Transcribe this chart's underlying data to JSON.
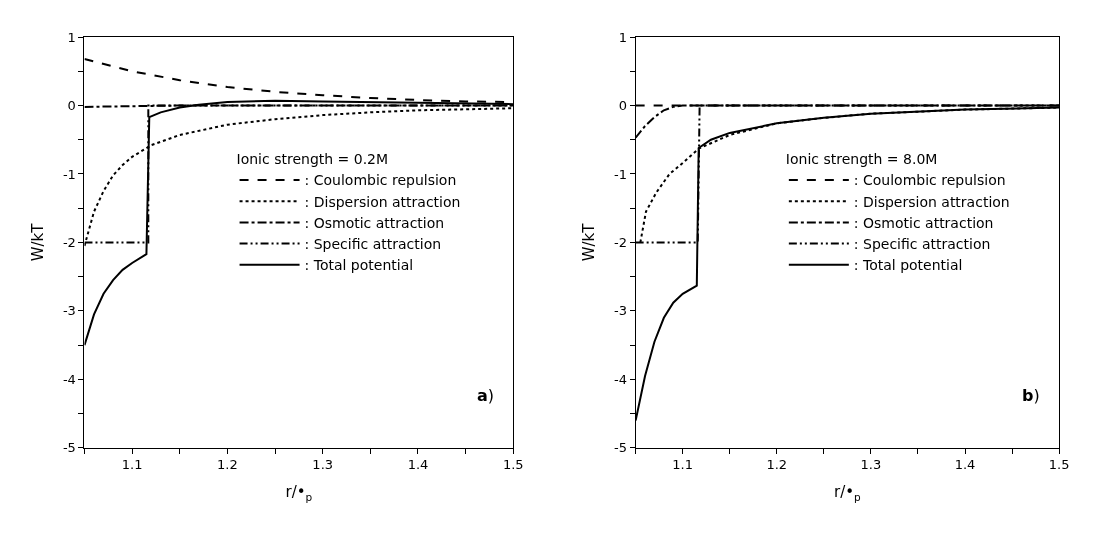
{
  "chart_data": [
    {
      "type": "line",
      "xlabel": "r/•$_{p}$",
      "ylabel": "W/kT",
      "legend_title": "Ionic strength = 0.2M",
      "annotations": [
        "a)"
      ],
      "xlim": [
        1.05,
        1.5
      ],
      "ylim": [
        -5,
        1
      ],
      "xticks": [
        {
          "value": 1.05,
          "label": null
        },
        1.1,
        {
          "value": 1.15,
          "label": null
        },
        1.2,
        {
          "value": 1.25,
          "label": null
        },
        1.3,
        {
          "value": 1.35,
          "label": null
        },
        1.4,
        {
          "value": 1.45,
          "label": null
        },
        1.5
      ],
      "yticks": [
        -5,
        {
          "value": -4.5,
          "label": null
        },
        -4,
        {
          "value": -3.5,
          "label": null
        },
        -3,
        {
          "value": -2.5,
          "label": null
        },
        -2,
        {
          "value": -1.5,
          "label": null
        },
        -1,
        {
          "value": -0.5,
          "label": null
        },
        0,
        {
          "value": 0.5,
          "label": null
        },
        1
      ],
      "legend": "right",
      "marker": "none",
      "series": [
        {
          "name": ": Coulombic repulsion",
          "color": "#000000",
          "line_style": "dashed",
          "x": [
            1.05,
            1.1,
            1.15,
            1.2,
            1.25,
            1.3,
            1.35,
            1.4,
            1.45,
            1.5
          ],
          "values": [
            0.68,
            0.5,
            0.37,
            0.27,
            0.2,
            0.15,
            0.11,
            0.08,
            0.06,
            0.05
          ]
        },
        {
          "name": ": Dispersion attraction",
          "color": "#000000",
          "line_style": "dotted",
          "x": [
            1.05,
            1.06,
            1.07,
            1.08,
            1.09,
            1.1,
            1.12,
            1.15,
            1.2,
            1.25,
            1.3,
            1.35,
            1.4,
            1.5
          ],
          "values": [
            -2.05,
            -1.55,
            -1.25,
            -1.02,
            -0.87,
            -0.75,
            -0.58,
            -0.43,
            -0.28,
            -0.2,
            -0.14,
            -0.1,
            -0.07,
            -0.04
          ]
        },
        {
          "name": ": Osmotic attraction",
          "color": "#000000",
          "line_style": "dashdot",
          "x": [
            1.05,
            1.1,
            1.15,
            1.5
          ],
          "values": [
            -0.02,
            -0.01,
            0,
            0
          ]
        },
        {
          "name": ": Specific attraction",
          "color": "#000000",
          "line_style": "dashdotdot",
          "x": [
            1.05,
            1.117,
            1.117,
            1.5
          ],
          "values": [
            -2,
            -2,
            0,
            0
          ]
        },
        {
          "name": ": Total potential",
          "color": "#000000",
          "line_style": "solid",
          "x": [
            1.05,
            1.06,
            1.07,
            1.08,
            1.09,
            1.1,
            1.115,
            1.118,
            1.13,
            1.15,
            1.17,
            1.2,
            1.25,
            1.3,
            1.4,
            1.5
          ],
          "values": [
            -3.5,
            -3.05,
            -2.75,
            -2.55,
            -2.4,
            -2.3,
            -2.17,
            -0.17,
            -0.1,
            -0.03,
            0.01,
            0.05,
            0.07,
            0.06,
            0.04,
            0.02
          ]
        }
      ]
    },
    {
      "type": "line",
      "xlabel": "r/•$_{p}$",
      "ylabel": "W/kT",
      "legend_title": "Ionic strength = 8.0M",
      "annotations": [
        "b)"
      ],
      "xlim": [
        1.05,
        1.5
      ],
      "ylim": [
        -5,
        1
      ],
      "xticks": [
        {
          "value": 1.05,
          "label": null
        },
        1.1,
        {
          "value": 1.15,
          "label": null
        },
        1.2,
        {
          "value": 1.25,
          "label": null
        },
        1.3,
        {
          "value": 1.35,
          "label": null
        },
        1.4,
        {
          "value": 1.45,
          "label": null
        },
        1.5
      ],
      "yticks": [
        -5,
        {
          "value": -4.5,
          "label": null
        },
        -4,
        {
          "value": -3.5,
          "label": null
        },
        -3,
        {
          "value": -2.5,
          "label": null
        },
        -2,
        {
          "value": -1.5,
          "label": null
        },
        -1,
        {
          "value": -0.5,
          "label": null
        },
        0,
        {
          "value": 0.5,
          "label": null
        },
        1
      ],
      "legend": "right",
      "marker": "none",
      "series": [
        {
          "name": ": Coulombic repulsion",
          "color": "#000000",
          "line_style": "dashed",
          "x": [
            1.05,
            1.5
          ],
          "values": [
            0,
            0
          ]
        },
        {
          "name": ": Dispersion attraction",
          "color": "#000000",
          "line_style": "dotted",
          "x": [
            1.055,
            1.061,
            1.072,
            1.086,
            1.1,
            1.117,
            1.15,
            1.2,
            1.25,
            1.3,
            1.4,
            1.5
          ],
          "values": [
            -2,
            -1.55,
            -1.27,
            -1.0,
            -0.84,
            -0.63,
            -0.43,
            -0.26,
            -0.18,
            -0.12,
            -0.06,
            -0.03
          ]
        },
        {
          "name": ": Osmotic attraction",
          "color": "#000000",
          "line_style": "dashdot",
          "x": [
            1.05,
            1.06,
            1.07,
            1.08,
            1.09,
            1.1,
            1.5
          ],
          "values": [
            -0.47,
            -0.3,
            -0.17,
            -0.07,
            -0.02,
            0,
            0
          ]
        },
        {
          "name": ": Specific attraction",
          "color": "#000000",
          "line_style": "dashdotdot",
          "x": [
            1.05,
            1.116,
            1.118,
            1.5
          ],
          "values": [
            -2,
            -2,
            0,
            0
          ]
        },
        {
          "name": ": Total potential",
          "color": "#000000",
          "line_style": "solid",
          "x": [
            1.05,
            1.06,
            1.07,
            1.08,
            1.09,
            1.1,
            1.115,
            1.117,
            1.13,
            1.15,
            1.2,
            1.25,
            1.3,
            1.4,
            1.5
          ],
          "values": [
            -4.6,
            -3.95,
            -3.45,
            -3.1,
            -2.88,
            -2.75,
            -2.63,
            -0.62,
            -0.5,
            -0.4,
            -0.26,
            -0.18,
            -0.12,
            -0.06,
            -0.03
          ]
        }
      ]
    }
  ]
}
